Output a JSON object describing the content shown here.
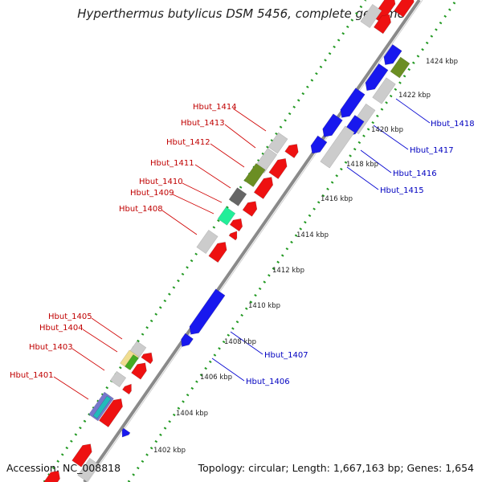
{
  "title": "Hyperthermus butylicus DSM 5456, complete genome",
  "accession": "Accession: NC_008818",
  "topology": "Topology: circular; Length: 1,667,163 bp; Genes: 1,654",
  "colors": {
    "forward": "#ee1111",
    "reverse": "#1818ee",
    "backbone": "#888888",
    "dots": "#229922"
  },
  "ticks": [
    {
      "label": "1402 kbp"
    },
    {
      "label": "1404 kbp"
    },
    {
      "label": "1406 kbp"
    },
    {
      "label": "1408 kbp"
    },
    {
      "label": "1410 kbp"
    },
    {
      "label": "1412 kbp"
    },
    {
      "label": "1414 kbp"
    },
    {
      "label": "1416 kbp"
    },
    {
      "label": "1418 kbp"
    },
    {
      "label": "1420 kbp"
    },
    {
      "label": "1422 kbp"
    },
    {
      "label": "1424 kbp"
    }
  ],
  "forward_labels": [
    "Hbut_1414",
    "Hbut_1413",
    "Hbut_1412",
    "Hbut_1411",
    "Hbut_1410",
    "Hbut_1409",
    "Hbut_1408",
    "Hbut_1405",
    "Hbut_1404",
    "Hbut_1403",
    "Hbut_1401"
  ],
  "reverse_labels": [
    "Hbut_1418",
    "Hbut_1417",
    "Hbut_1416",
    "Hbut_1415",
    "Hbut_1407",
    "Hbut_1406"
  ]
}
